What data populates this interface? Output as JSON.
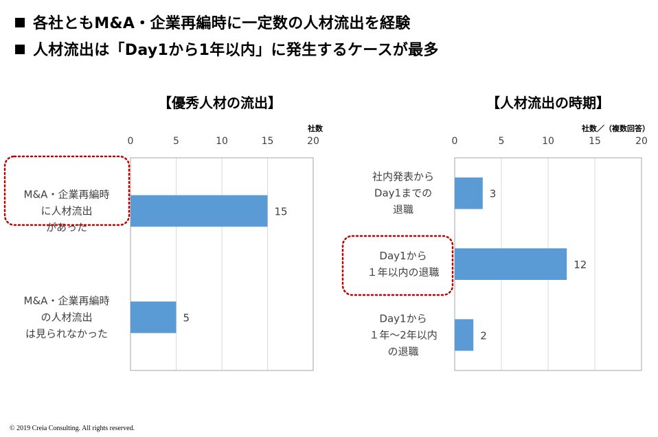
{
  "bullets": [
    "各社ともM&A・企業再編時に一定数の人材流出を経験",
    "人材流出は「Day1から1年以内」に発生するケースが最多"
  ],
  "colors": {
    "bar": "#5B9BD5",
    "highlight": "#C00000",
    "grid": "#D9D9D9",
    "axis": "#A6A6A6"
  },
  "chart_data": [
    {
      "type": "bar",
      "orientation": "horizontal",
      "title": "【優秀人材の流出】",
      "unit_label": "社数",
      "xlim": [
        0,
        20
      ],
      "ticks": [
        0,
        5,
        10,
        15,
        20
      ],
      "grid": true,
      "categories": [
        [
          "M&A・企業再編時",
          "に人材流出",
          "があった"
        ],
        [
          "M&A・企業再編時",
          "の人材流出",
          "は見られなかった"
        ]
      ],
      "values": [
        15,
        5
      ],
      "highlighted_category_index": 0
    },
    {
      "type": "bar",
      "orientation": "horizontal",
      "title": "【人材流出の時期】",
      "unit_label": "社数／（複数回答）",
      "xlim": [
        0,
        20
      ],
      "ticks": [
        0,
        5,
        10,
        15,
        20
      ],
      "grid": true,
      "categories": [
        [
          "社内発表から",
          "Day1までの",
          "退職"
        ],
        [
          "Day1から",
          "１年以内の退職"
        ],
        [
          "Day1から",
          "１年～2年以内",
          "の退職"
        ]
      ],
      "values": [
        3,
        12,
        2
      ],
      "highlighted_category_index": 1
    }
  ],
  "footer": "© 2019 Creia Consulting. All rights reserved."
}
